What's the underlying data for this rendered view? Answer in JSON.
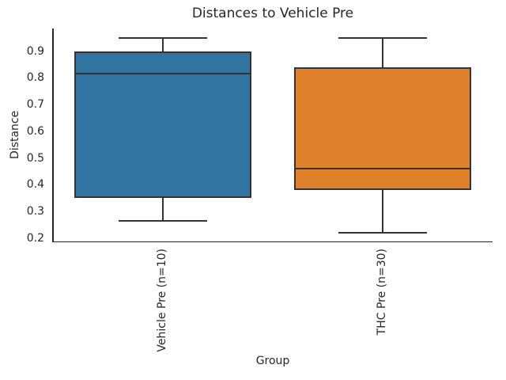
{
  "chart_data": {
    "type": "box",
    "title": "Distances to Vehicle Pre",
    "xlabel": "Group",
    "ylabel": "Distance",
    "categories": [
      "Vehicle Pre (n=10)",
      "THC Pre (n=30)"
    ],
    "series": [
      {
        "name": "Vehicle Pre (n=10)",
        "color": "#3274A1",
        "whisker_low": 0.265,
        "q1": 0.35,
        "median": 0.815,
        "q3": 0.9,
        "whisker_high": 0.95
      },
      {
        "name": "THC Pre (n=30)",
        "color": "#E1812C",
        "whisker_low": 0.22,
        "q1": 0.38,
        "median": 0.46,
        "q3": 0.84,
        "whisker_high": 0.95
      }
    ],
    "yticks": [
      0.2,
      0.3,
      0.4,
      0.5,
      0.6,
      0.7,
      0.8,
      0.9
    ],
    "ylim": [
      0.188,
      0.985
    ],
    "grid": false,
    "legend": null,
    "line_color": "#333333",
    "text_color": "#262626",
    "background": "#ffffff"
  }
}
